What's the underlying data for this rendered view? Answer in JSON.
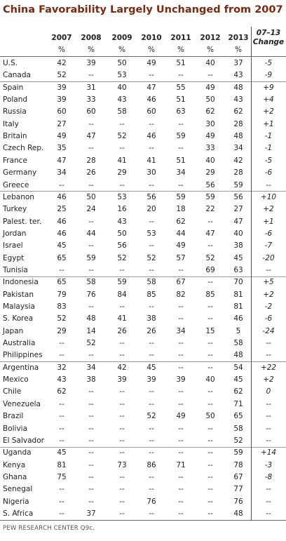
{
  "title": "China Favorability Largely Unchanged from 2007",
  "columns": [
    "2007",
    "2008",
    "2009",
    "2010",
    "2011",
    "2012",
    "2013"
  ],
  "unit": "%",
  "change_header": [
    "07–13",
    "Change"
  ],
  "groups": [
    {
      "rows": [
        {
          "country": "U.S.",
          "values": [
            "42",
            "39",
            "50",
            "49",
            "51",
            "40",
            "37"
          ],
          "change": "-5"
        },
        {
          "country": "Canada",
          "values": [
            "52",
            "--",
            "53",
            "--",
            "--",
            "--",
            "43"
          ],
          "change": "-9"
        }
      ]
    },
    {
      "rows": [
        {
          "country": "Spain",
          "values": [
            "39",
            "31",
            "40",
            "47",
            "55",
            "49",
            "48"
          ],
          "change": "+9"
        },
        {
          "country": "Poland",
          "values": [
            "39",
            "33",
            "43",
            "46",
            "51",
            "50",
            "43"
          ],
          "change": "+4"
        },
        {
          "country": "Russia",
          "values": [
            "60",
            "60",
            "58",
            "60",
            "63",
            "62",
            "62"
          ],
          "change": "+2"
        },
        {
          "country": "Italy",
          "values": [
            "27",
            "--",
            "--",
            "--",
            "--",
            "30",
            "28"
          ],
          "change": "+1"
        },
        {
          "country": "Britain",
          "values": [
            "49",
            "47",
            "52",
            "46",
            "59",
            "49",
            "48"
          ],
          "change": "-1"
        },
        {
          "country": "Czech Rep.",
          "values": [
            "35",
            "--",
            "--",
            "--",
            "--",
            "33",
            "34"
          ],
          "change": "-1"
        },
        {
          "country": "France",
          "values": [
            "47",
            "28",
            "41",
            "41",
            "51",
            "40",
            "42"
          ],
          "change": "-5"
        },
        {
          "country": "Germany",
          "values": [
            "34",
            "26",
            "29",
            "30",
            "34",
            "29",
            "28"
          ],
          "change": "-6"
        },
        {
          "country": "Greece",
          "values": [
            "--",
            "--",
            "--",
            "--",
            "--",
            "56",
            "59"
          ],
          "change": "--"
        }
      ]
    },
    {
      "rows": [
        {
          "country": "Lebanon",
          "values": [
            "46",
            "50",
            "53",
            "56",
            "59",
            "59",
            "56"
          ],
          "change": "+10"
        },
        {
          "country": "Turkey",
          "values": [
            "25",
            "24",
            "16",
            "20",
            "18",
            "22",
            "27"
          ],
          "change": "+2"
        },
        {
          "country": "Palest. ter.",
          "values": [
            "46",
            "--",
            "43",
            "--",
            "62",
            "--",
            "47"
          ],
          "change": "+1"
        },
        {
          "country": "Jordan",
          "values": [
            "46",
            "44",
            "50",
            "53",
            "44",
            "47",
            "40"
          ],
          "change": "-6"
        },
        {
          "country": "Israel",
          "values": [
            "45",
            "--",
            "56",
            "--",
            "49",
            "--",
            "38"
          ],
          "change": "-7"
        },
        {
          "country": "Egypt",
          "values": [
            "65",
            "59",
            "52",
            "52",
            "57",
            "52",
            "45"
          ],
          "change": "-20"
        },
        {
          "country": "Tunisia",
          "values": [
            "--",
            "--",
            "--",
            "--",
            "--",
            "69",
            "63"
          ],
          "change": "--"
        }
      ]
    },
    {
      "rows": [
        {
          "country": "Indonesia",
          "values": [
            "65",
            "58",
            "59",
            "58",
            "67",
            "--",
            "70"
          ],
          "change": "+5"
        },
        {
          "country": "Pakistan",
          "values": [
            "79",
            "76",
            "84",
            "85",
            "82",
            "85",
            "81"
          ],
          "change": "+2"
        },
        {
          "country": "Malaysia",
          "values": [
            "83",
            "--",
            "--",
            "--",
            "--",
            "--",
            "81"
          ],
          "change": "-2"
        },
        {
          "country": "S. Korea",
          "values": [
            "52",
            "48",
            "41",
            "38",
            "--",
            "--",
            "46"
          ],
          "change": "-6"
        },
        {
          "country": "Japan",
          "values": [
            "29",
            "14",
            "26",
            "26",
            "34",
            "15",
            "5"
          ],
          "change": "-24"
        },
        {
          "country": "Australia",
          "values": [
            "--",
            "52",
            "--",
            "--",
            "--",
            "--",
            "58"
          ],
          "change": "--"
        },
        {
          "country": "Philippines",
          "values": [
            "--",
            "--",
            "--",
            "--",
            "--",
            "--",
            "48"
          ],
          "change": "--"
        }
      ]
    },
    {
      "rows": [
        {
          "country": "Argentina",
          "values": [
            "32",
            "34",
            "42",
            "45",
            "--",
            "--",
            "54"
          ],
          "change": "+22"
        },
        {
          "country": "Mexico",
          "values": [
            "43",
            "38",
            "39",
            "39",
            "39",
            "40",
            "45"
          ],
          "change": "+2"
        },
        {
          "country": "Chile",
          "values": [
            "62",
            "--",
            "--",
            "--",
            "--",
            "--",
            "62"
          ],
          "change": "0"
        },
        {
          "country": "Venezuela",
          "values": [
            "--",
            "--",
            "--",
            "--",
            "--",
            "--",
            "71"
          ],
          "change": "--"
        },
        {
          "country": "Brazil",
          "values": [
            "--",
            "--",
            "--",
            "52",
            "49",
            "50",
            "65"
          ],
          "change": "--"
        },
        {
          "country": "Bolivia",
          "values": [
            "--",
            "--",
            "--",
            "--",
            "--",
            "--",
            "58"
          ],
          "change": "--"
        },
        {
          "country": "El Salvador",
          "values": [
            "--",
            "--",
            "--",
            "--",
            "--",
            "--",
            "52"
          ],
          "change": "--"
        }
      ]
    },
    {
      "rows": [
        {
          "country": "Uganda",
          "values": [
            "45",
            "--",
            "--",
            "--",
            "--",
            "--",
            "59"
          ],
          "change": "+14"
        },
        {
          "country": "Kenya",
          "values": [
            "81",
            "--",
            "73",
            "86",
            "71",
            "--",
            "78"
          ],
          "change": "-3"
        },
        {
          "country": "Ghana",
          "values": [
            "75",
            "--",
            "--",
            "--",
            "--",
            "--",
            "67"
          ],
          "change": "-8"
        },
        {
          "country": "Senegal",
          "values": [
            "--",
            "--",
            "--",
            "--",
            "--",
            "--",
            "77"
          ],
          "change": "--"
        },
        {
          "country": "Nigeria",
          "values": [
            "--",
            "--",
            "--",
            "76",
            "--",
            "--",
            "76"
          ],
          "change": "--"
        },
        {
          "country": "S. Africa",
          "values": [
            "--",
            "37",
            "--",
            "--",
            "--",
            "--",
            "48"
          ],
          "change": "--"
        }
      ]
    }
  ],
  "source": "PEW RESEARCH CENTER Q9c."
}
